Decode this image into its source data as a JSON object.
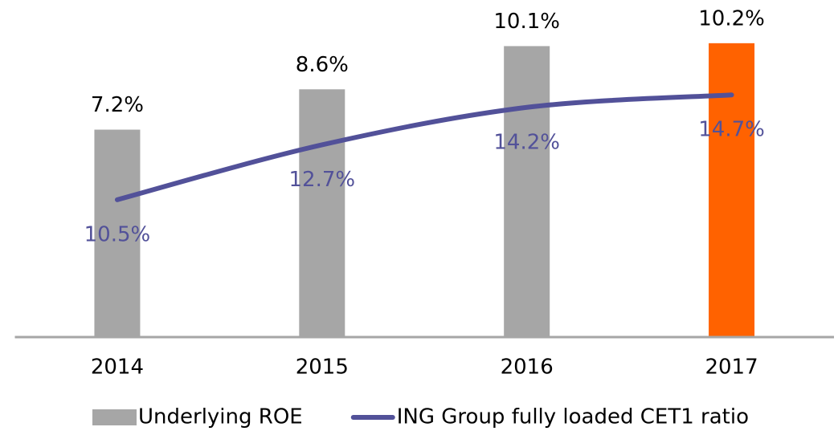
{
  "chart_data": {
    "type": "bar-line",
    "categories": [
      "2014",
      "2015",
      "2016",
      "2017"
    ],
    "series": [
      {
        "name": "Underlying ROE",
        "type": "bar",
        "color": "#a6a6a6",
        "colors": [
          "#a6a6a6",
          "#a6a6a6",
          "#a6a6a6",
          "#ff6200"
        ],
        "values": [
          7.2,
          8.6,
          10.1,
          10.2
        ],
        "value_labels": [
          "7.2%",
          "8.6%",
          "10.1%",
          "10.2%"
        ]
      },
      {
        "name": "ING Group fully loaded CET1 ratio",
        "type": "line",
        "axis": "y2",
        "color": "#525199",
        "values": [
          10.5,
          12.7,
          14.2,
          14.7
        ],
        "value_labels": [
          "10.5%",
          "12.7%",
          "14.2%",
          "14.7%"
        ]
      }
    ],
    "ylim": [
      0,
      11.7
    ],
    "y2lim": [
      5,
      18.5
    ],
    "legend": "bottom"
  }
}
